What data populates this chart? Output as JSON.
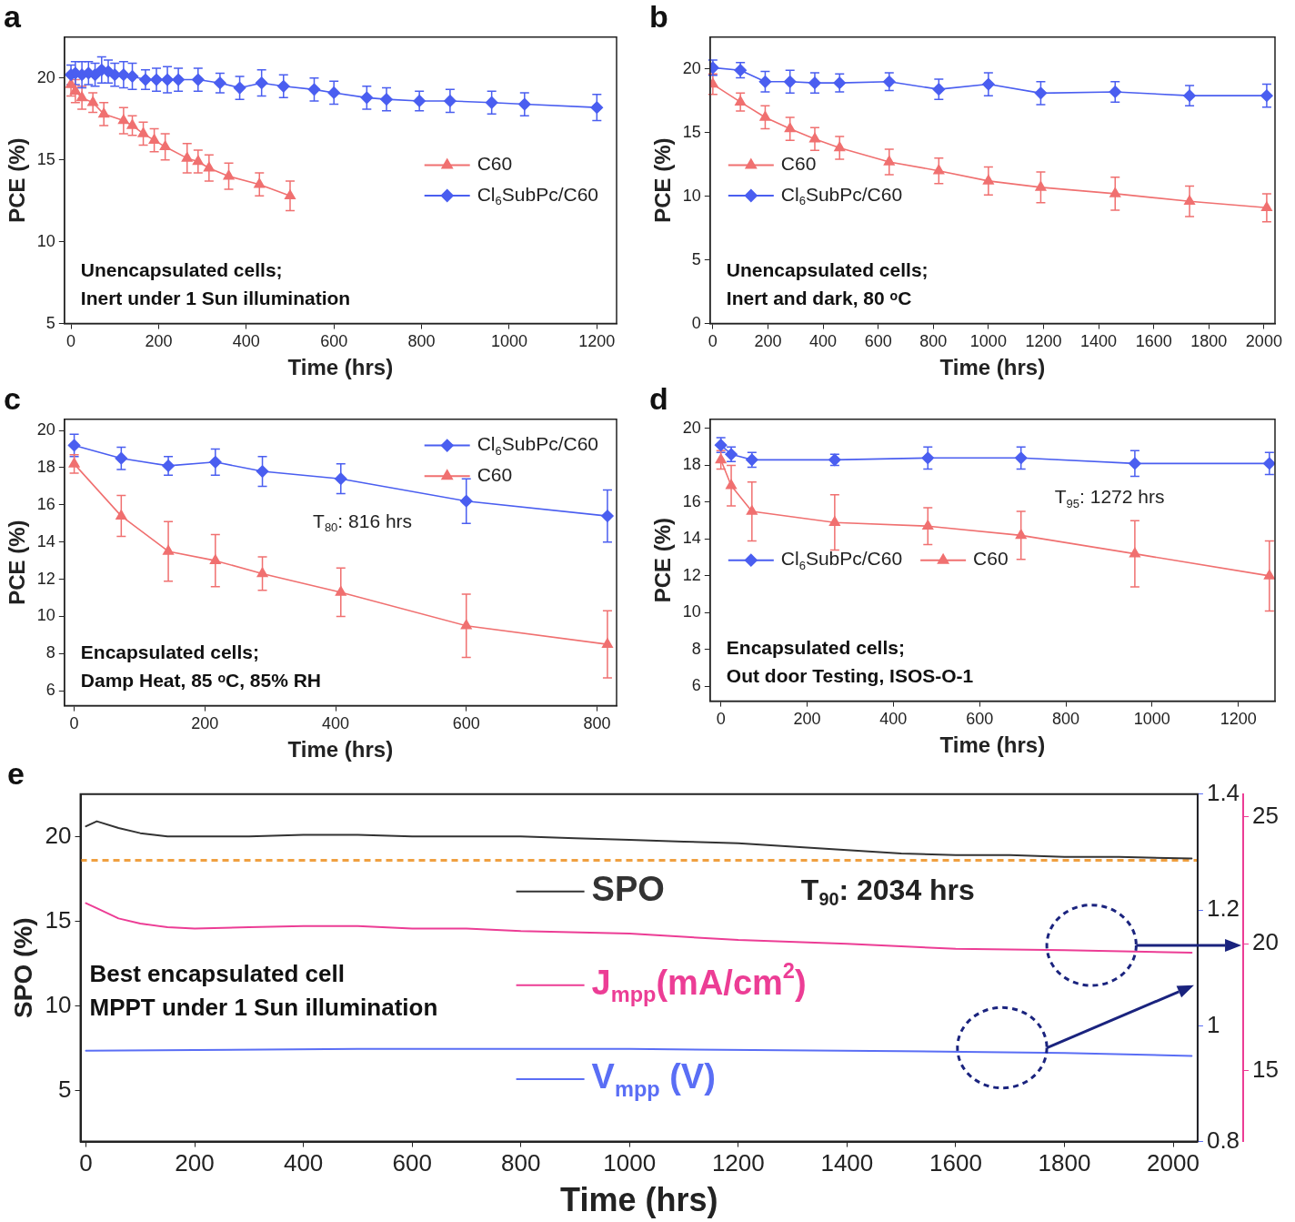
{
  "chart_data": [
    {
      "type": "line",
      "title": "a",
      "xlabel": "Time (hrs)",
      "ylabel": "PCE (%)",
      "xlim": [
        -15,
        1245
      ],
      "xticks": [
        0,
        200,
        400,
        600,
        800,
        1000,
        1200
      ],
      "ylim": [
        5,
        22.5
      ],
      "yticks": [
        5,
        10,
        15,
        20
      ],
      "legend": "right",
      "annotations": [
        "Unencapsulated cells;",
        "Inert under 1 Sun illumination"
      ],
      "series": [
        {
          "name": "C60",
          "color": "#f07070",
          "marker": "triangle",
          "x": [
            0,
            10,
            25,
            50,
            75,
            120,
            140,
            165,
            190,
            215,
            265,
            290,
            315,
            360,
            430,
            500
          ],
          "values": [
            19.6,
            19.2,
            18.8,
            18.5,
            17.8,
            17.4,
            17.1,
            16.6,
            16.2,
            15.8,
            15.1,
            14.9,
            14.5,
            14.0,
            13.5,
            12.8
          ],
          "errors": [
            0.7,
            0.7,
            0.7,
            0.6,
            0.7,
            0.8,
            0.6,
            0.7,
            0.7,
            0.8,
            0.9,
            0.7,
            0.8,
            0.8,
            0.7,
            0.9
          ]
        },
        {
          "name": "Cl$_{6}$SubPc/C60",
          "color": "#4a5ef0",
          "marker": "diamond",
          "x": [
            0,
            10,
            25,
            40,
            55,
            70,
            85,
            100,
            120,
            140,
            170,
            195,
            220,
            245,
            290,
            340,
            385,
            435,
            485,
            555,
            600,
            675,
            720,
            795,
            865,
            960,
            1035,
            1200
          ],
          "values": [
            20.2,
            20.3,
            20.2,
            20.3,
            20.2,
            20.5,
            20.4,
            20.2,
            20.2,
            20.1,
            19.9,
            19.9,
            19.9,
            19.9,
            19.9,
            19.7,
            19.4,
            19.7,
            19.5,
            19.3,
            19.1,
            18.8,
            18.7,
            18.6,
            18.6,
            18.5,
            18.4,
            18.2
          ],
          "errors": [
            0.6,
            0.7,
            0.8,
            0.7,
            0.7,
            0.8,
            0.7,
            0.7,
            0.8,
            0.8,
            0.6,
            0.7,
            0.8,
            0.7,
            0.7,
            0.6,
            0.7,
            0.8,
            0.7,
            0.7,
            0.7,
            0.7,
            0.7,
            0.6,
            0.7,
            0.7,
            0.7,
            0.8
          ]
        }
      ]
    },
    {
      "type": "line",
      "title": "b",
      "xlabel": "Time (hrs)",
      "ylabel": "PCE (%)",
      "xlim": [
        -10,
        2040
      ],
      "xticks": [
        0,
        200,
        400,
        600,
        800,
        1000,
        1200,
        1400,
        1600,
        1800,
        2000
      ],
      "ylim": [
        0,
        22.5
      ],
      "yticks": [
        0,
        5,
        10,
        15,
        20
      ],
      "legend": "left",
      "annotations": [
        "Unencapsulated cells;",
        "Inert and dark, 80 ᵒC"
      ],
      "series": [
        {
          "name": "C60",
          "color": "#f07070",
          "marker": "triangle",
          "x": [
            0,
            100,
            190,
            280,
            370,
            460,
            640,
            820,
            1000,
            1190,
            1460,
            1730,
            2010
          ],
          "values": [
            18.8,
            17.4,
            16.2,
            15.3,
            14.5,
            13.8,
            12.7,
            12.0,
            11.2,
            10.7,
            10.2,
            9.6,
            9.1
          ],
          "errors": [
            0.8,
            0.7,
            0.9,
            0.9,
            0.9,
            0.9,
            1.0,
            1.0,
            1.1,
            1.2,
            1.3,
            1.2,
            1.1
          ]
        },
        {
          "name": "Cl$_{6}$SubPc/C60",
          "color": "#4a5ef0",
          "marker": "diamond",
          "x": [
            0,
            100,
            190,
            280,
            370,
            460,
            640,
            820,
            1000,
            1190,
            1460,
            1730,
            2010
          ],
          "values": [
            20.1,
            19.9,
            19.0,
            19.0,
            18.9,
            18.9,
            19.0,
            18.4,
            18.8,
            18.1,
            18.2,
            17.9,
            17.9
          ],
          "errors": [
            0.6,
            0.6,
            0.8,
            0.9,
            0.8,
            0.7,
            0.7,
            0.8,
            0.9,
            0.9,
            0.8,
            0.8,
            0.9
          ]
        }
      ]
    },
    {
      "type": "line",
      "title": "c",
      "xlabel": "Time (hrs)",
      "ylabel": "PCE (%)",
      "xlim": [
        -15,
        830
      ],
      "xticks": [
        0,
        200,
        400,
        600,
        800
      ],
      "ylim": [
        5.2,
        20.6
      ],
      "yticks": [
        6,
        8,
        10,
        12,
        14,
        16,
        18,
        20
      ],
      "legend": "top right",
      "annotations": [
        "Encapsulated cells;",
        "Damp Heat, 85 ᵒC, 85% RH",
        "T$_{80}$: 816 hrs"
      ],
      "series": [
        {
          "name": "Cl$_{6}$SubPc/C60",
          "color": "#4a5ef0",
          "marker": "diamond",
          "x": [
            0,
            72,
            144,
            216,
            288,
            408,
            600,
            816
          ],
          "values": [
            19.2,
            18.5,
            18.1,
            18.3,
            17.8,
            17.4,
            16.2,
            15.4
          ],
          "errors": [
            0.6,
            0.6,
            0.5,
            0.7,
            0.8,
            0.8,
            1.2,
            1.4
          ]
        },
        {
          "name": "C60",
          "color": "#f07070",
          "marker": "triangle",
          "x": [
            0,
            72,
            144,
            216,
            288,
            408,
            600,
            816
          ],
          "values": [
            18.2,
            15.4,
            13.5,
            13.0,
            12.3,
            11.3,
            9.5,
            8.5
          ],
          "errors": [
            0.5,
            1.1,
            1.6,
            1.4,
            0.9,
            1.3,
            1.7,
            1.8
          ]
        }
      ]
    },
    {
      "type": "line",
      "title": "d",
      "xlabel": "Time (hrs)",
      "ylabel": "PCE (%)",
      "xlim": [
        -25,
        1285
      ],
      "xticks": [
        0,
        200,
        400,
        600,
        800,
        1000,
        1200
      ],
      "ylim": [
        5.2,
        20.5
      ],
      "yticks": [
        6,
        8,
        10,
        12,
        14,
        16,
        18,
        20
      ],
      "legend": "left",
      "annotations": [
        "Encapsulated cells;",
        "Out door Testing, ISOS-O-1",
        "T$_{95}$: 1272 hrs"
      ],
      "series": [
        {
          "name": "Cl$_{6}$SubPc/C60",
          "color": "#4a5ef0",
          "marker": "diamond",
          "x": [
            0,
            24,
            72,
            264,
            480,
            696,
            960,
            1272
          ],
          "values": [
            19.1,
            18.6,
            18.3,
            18.3,
            18.4,
            18.4,
            18.1,
            18.1
          ],
          "errors": [
            0.4,
            0.4,
            0.4,
            0.3,
            0.6,
            0.6,
            0.7,
            0.6
          ]
        },
        {
          "name": "C60",
          "color": "#f07070",
          "marker": "triangle",
          "x": [
            0,
            24,
            72,
            264,
            480,
            696,
            960,
            1272
          ],
          "values": [
            18.3,
            16.9,
            15.5,
            14.9,
            14.7,
            14.2,
            13.2,
            12.0
          ],
          "errors": [
            0.5,
            1.1,
            1.6,
            1.5,
            1.0,
            1.3,
            1.8,
            1.9
          ]
        }
      ]
    },
    {
      "type": "line",
      "title": "e",
      "xlabel": "Time (hrs)",
      "ylabel": "SPO (%)",
      "xlim": [
        -10,
        2045
      ],
      "xticks": [
        0,
        200,
        400,
        600,
        800,
        1000,
        1200,
        1400,
        1600,
        1800,
        2000
      ],
      "ylim": [
        2,
        22.5
      ],
      "yticks": [
        5,
        10,
        15,
        20
      ],
      "y2lim": [
        0.8,
        1.4
      ],
      "y2ticks": [
        0.8,
        1.0,
        1.2,
        1.4
      ],
      "y3lim": [
        12.2,
        25.9
      ],
      "y3ticks": [
        15,
        20,
        25
      ],
      "legend": "center",
      "annotations": [
        "Best encapsulated cell",
        "MPPT under 1 Sun illumination",
        "T$_{90}$: 2034 hrs"
      ],
      "ref_lines": [
        {
          "axis": "y",
          "value": 18.6,
          "color": "#f0a040",
          "line_style": "dashed"
        }
      ],
      "series": [
        {
          "name": "SPO",
          "color": "#333333",
          "marker": "none",
          "x": [
            0,
            20,
            60,
            100,
            150,
            200,
            300,
            400,
            500,
            600,
            700,
            800,
            900,
            1000,
            1100,
            1200,
            1300,
            1400,
            1500,
            1600,
            1700,
            1800,
            1900,
            2034
          ],
          "values": [
            20.6,
            20.9,
            20.5,
            20.2,
            20.0,
            20.0,
            20.0,
            20.1,
            20.1,
            20.0,
            20.0,
            20.0,
            19.9,
            19.8,
            19.7,
            19.6,
            19.4,
            19.2,
            19.0,
            18.9,
            18.9,
            18.8,
            18.8,
            18.7
          ]
        },
        {
          "name": "J$_{mpp}$(mA/cm$^{2}$)",
          "color": "#ec3d95",
          "marker": "none",
          "axis": "y3",
          "x": [
            0,
            20,
            60,
            100,
            150,
            200,
            300,
            400,
            500,
            600,
            700,
            800,
            1000,
            1200,
            1400,
            1600,
            1800,
            2034
          ],
          "values": [
            21.6,
            21.4,
            21.0,
            20.8,
            20.65,
            20.6,
            20.65,
            20.7,
            20.7,
            20.6,
            20.6,
            20.5,
            20.4,
            20.15,
            20.0,
            19.8,
            19.75,
            19.65
          ]
        },
        {
          "name": "V$_{mpp}$ (V)",
          "color": "#5a6ef5",
          "marker": "none",
          "axis": "y2",
          "x": [
            0,
            200,
            500,
            1000,
            1500,
            1800,
            2034
          ],
          "values": [
            0.957,
            0.958,
            0.96,
            0.96,
            0.956,
            0.953,
            0.948
          ]
        }
      ]
    }
  ]
}
